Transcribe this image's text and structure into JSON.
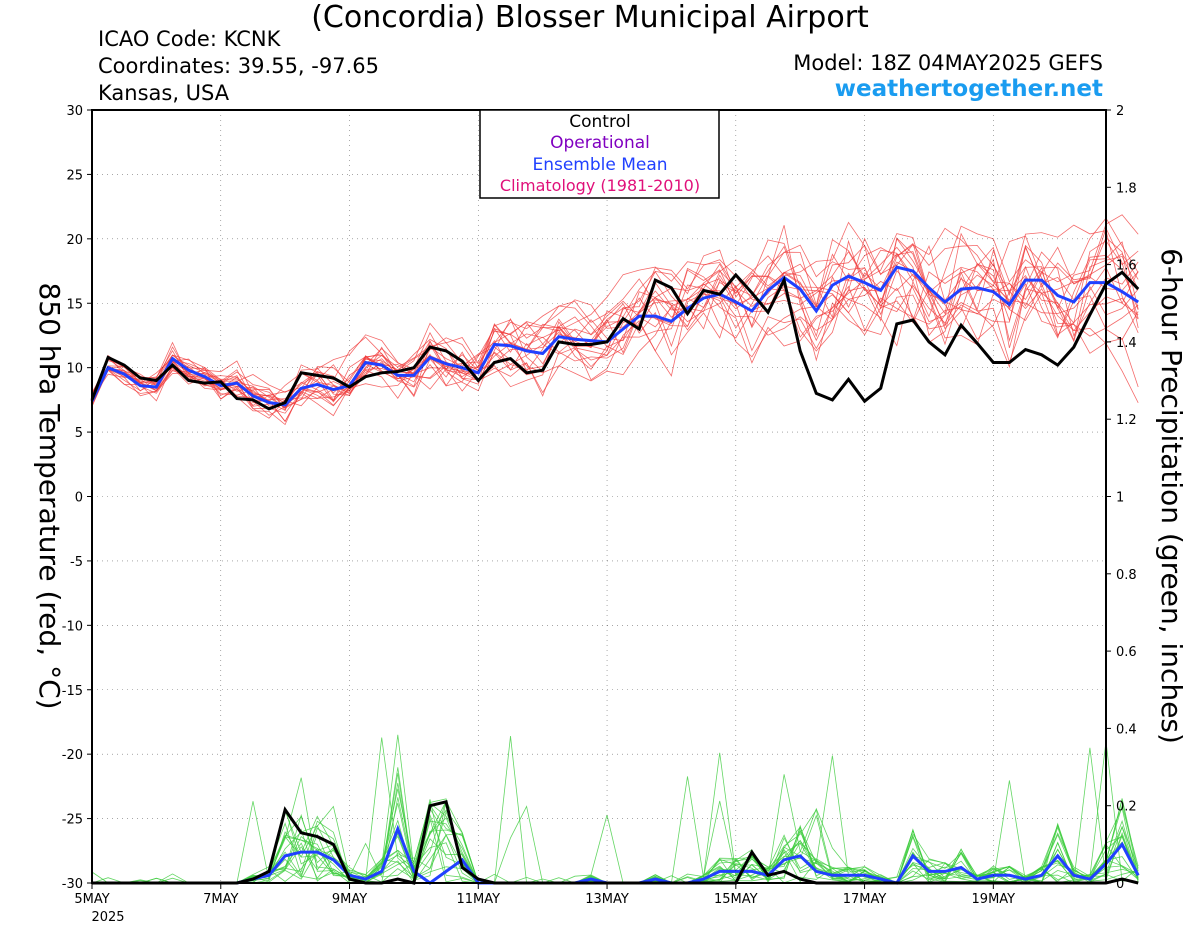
{
  "header": {
    "station_name": "(Concordia) Blosser Municipal Airport",
    "icao_label": "ICAO Code: KCNK",
    "coordinates_label": "Coordinates: 39.55, -97.65",
    "region_label": "Kansas, USA",
    "model_label": "Model: 18Z 04MAY2025 GEFS",
    "site_label": "weathertogether.net"
  },
  "colors": {
    "control": "#000000",
    "operational": "#8000c0",
    "ensemble_mean": "#2040ff",
    "climatology": "#e0107a",
    "temperature_members": "#f03a3a",
    "precip_members": "#3ccc3c",
    "site": "#1a9cf0"
  },
  "chart_data": {
    "type": "line",
    "x_tick_labels": [
      "5MAY",
      "7MAY",
      "9MAY",
      "11MAY",
      "13MAY",
      "15MAY",
      "17MAY",
      "19MAY"
    ],
    "x_year_label": "2025",
    "x_range_days": [
      0,
      15.75
    ],
    "y_left": {
      "label": "850 hPa Temperature (red, °C)",
      "range": [
        -30,
        30
      ],
      "ticks": [
        30,
        25,
        20,
        15,
        10,
        5,
        0,
        -5,
        -10,
        -15,
        -20,
        -25,
        -30
      ]
    },
    "y_right": {
      "label": "6-hour Precipitation (green, inches)",
      "range": [
        0,
        2
      ],
      "ticks": [
        2,
        1.8,
        1.6,
        1.4,
        1.2,
        1,
        0.8,
        0.6,
        0.4,
        0.2,
        0
      ]
    },
    "legend": {
      "placement": "top-center",
      "entries": [
        "Control",
        "Operational",
        "Ensemble Mean",
        "Climatology (1981-2010)"
      ]
    },
    "step_hours": 6,
    "temperature_series": {
      "control": [
        7.5,
        10.8,
        10.2,
        9.2,
        9.0,
        10.2,
        9.0,
        8.8,
        8.9,
        7.6,
        7.5,
        6.8,
        7.3,
        9.6,
        9.4,
        9.2,
        8.5,
        9.3,
        9.6,
        9.7,
        10.0,
        11.6,
        11.3,
        10.5,
        9.0,
        10.4,
        10.7,
        9.6,
        9.8,
        12.0,
        11.8,
        11.8,
        12.0,
        13.8,
        13.0,
        16.8,
        16.2,
        14.2,
        16.0,
        15.7,
        17.2,
        15.8,
        14.3,
        16.8,
        11.3,
        8.0,
        7.5,
        9.1,
        7.4,
        8.4,
        13.4,
        13.7,
        12.0,
        11.0,
        13.3,
        11.9,
        10.4,
        10.4,
        11.4,
        11.0,
        10.2,
        11.6,
        14.1,
        16.5,
        17.4,
        16.1
      ],
      "ensemble_mean": [
        7.4,
        10.0,
        9.5,
        8.6,
        8.5,
        10.7,
        9.8,
        9.3,
        8.6,
        8.8,
        7.8,
        7.3,
        7.1,
        8.4,
        8.7,
        8.3,
        8.6,
        10.4,
        10.2,
        9.4,
        9.4,
        10.8,
        10.3,
        10.0,
        9.6,
        11.8,
        11.7,
        11.3,
        11.1,
        12.4,
        12.2,
        12.1,
        12.0,
        13.0,
        14.0,
        14.0,
        13.6,
        14.6,
        15.4,
        15.7,
        15.1,
        14.4,
        16.0,
        17.0,
        16.1,
        14.4,
        16.4,
        17.1,
        16.6,
        16.0,
        17.8,
        17.5,
        16.2,
        15.1,
        16.1,
        16.2,
        15.9,
        14.9,
        16.8,
        16.8,
        15.6,
        15.1,
        16.6,
        16.6,
        15.9,
        15.1
      ]
    },
    "precip_series": {
      "control": [
        0,
        0,
        0,
        0,
        0,
        0,
        0,
        0,
        0,
        0,
        0.01,
        0.03,
        0.19,
        0.13,
        0.12,
        0.1,
        0.01,
        0,
        0,
        0.01,
        0,
        0.2,
        0.21,
        0.04,
        0.01,
        0,
        0,
        0,
        0,
        0,
        0,
        0,
        0,
        0,
        0,
        0,
        0,
        0,
        0,
        0,
        0,
        0.08,
        0.02,
        0.03,
        0.01,
        0,
        0,
        0,
        0,
        0,
        0,
        0,
        0,
        0,
        0,
        0,
        0,
        0,
        0,
        0,
        0,
        0,
        0,
        0,
        0.01,
        0
      ],
      "ensemble_mean": [
        0,
        0,
        0,
        0,
        0,
        0,
        0,
        0,
        0,
        0,
        0.01,
        0.02,
        0.07,
        0.08,
        0.08,
        0.06,
        0.02,
        0.01,
        0.03,
        0.14,
        0.03,
        0,
        0.03,
        0.06,
        0,
        0,
        0,
        0,
        0,
        0,
        0,
        0.01,
        0,
        0,
        0,
        0.01,
        0,
        0,
        0.01,
        0.03,
        0.03,
        0.03,
        0.02,
        0.06,
        0.07,
        0.03,
        0.02,
        0.02,
        0.02,
        0.01,
        0,
        0.07,
        0.03,
        0.03,
        0.04,
        0.01,
        0.02,
        0.02,
        0.01,
        0.02,
        0.07,
        0.02,
        0.01,
        0.05,
        0.1,
        0.02
      ]
    }
  }
}
